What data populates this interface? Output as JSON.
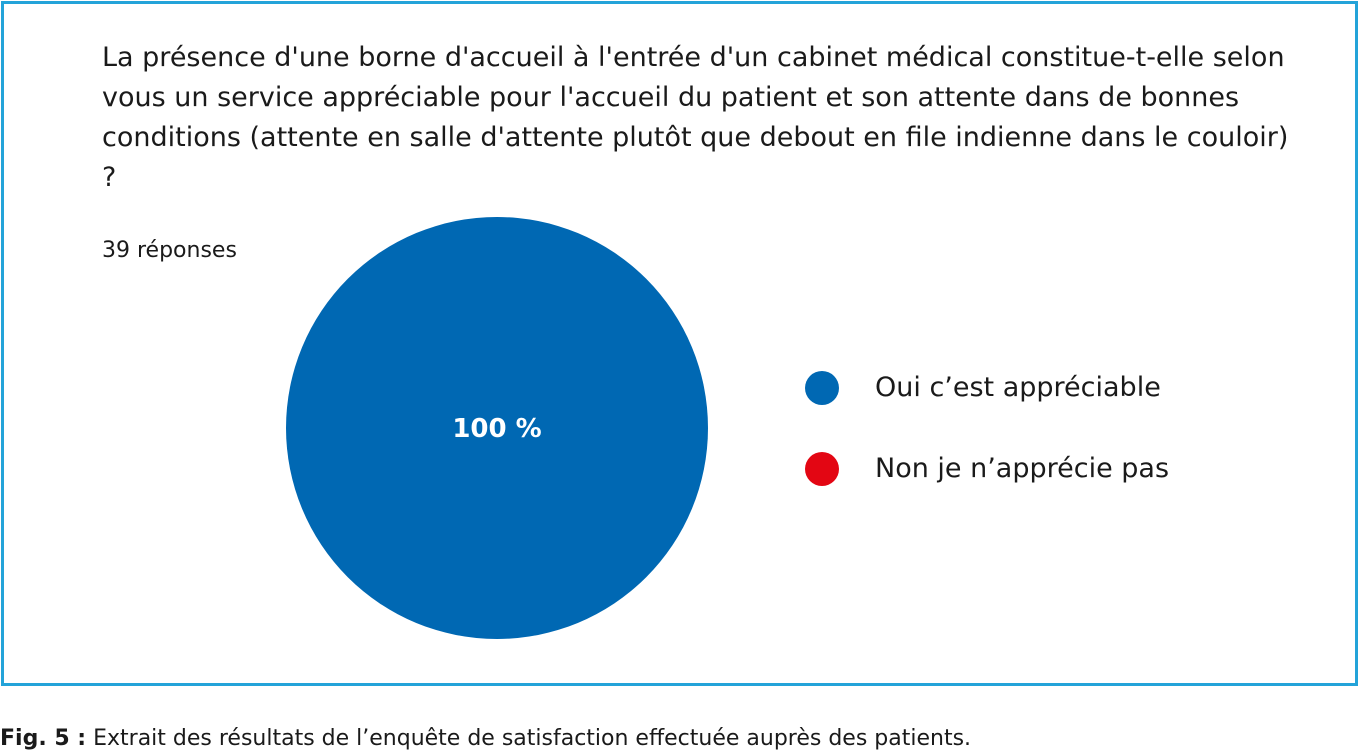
{
  "question": "La présence d'une borne d'accueil à l'entrée d'un cabinet médical constitue-t-elle selon vous un service appréciable pour l'accueil du patient et son attente dans de bonnes conditions (attente en salle d'attente plutôt que debout en file indienne dans le couloir) ?",
  "responses_label": "39 réponses",
  "caption": {
    "fig_label": "Fig. 5 :",
    "text": " Extrait des résultats de l’enquête de satisfaction effectuée auprès des patients."
  },
  "chart_data": {
    "type": "pie",
    "categories": [
      "Oui c’est appréciable",
      "Non je n’apprécie pas"
    ],
    "values": [
      100,
      0
    ],
    "value_labels": [
      "100 %",
      ""
    ],
    "colors": [
      "#0068b3",
      "#e30613"
    ],
    "legend_position": "right",
    "total_responses": 39
  }
}
